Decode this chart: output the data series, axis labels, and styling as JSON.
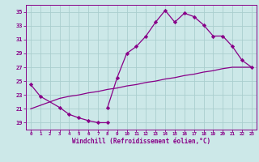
{
  "xlabel": "Windchill (Refroidissement éolien,°C)",
  "bg_color": "#cce8e8",
  "grid_color": "#aacece",
  "line_color": "#880088",
  "ylim": [
    18.0,
    36.0
  ],
  "yticks": [
    19,
    21,
    23,
    25,
    27,
    29,
    31,
    33,
    35
  ],
  "xlim": [
    -0.5,
    23.5
  ],
  "xticks": [
    0,
    1,
    2,
    3,
    4,
    5,
    6,
    7,
    8,
    9,
    10,
    11,
    12,
    13,
    14,
    15,
    16,
    17,
    18,
    19,
    20,
    21,
    22,
    23
  ],
  "series1_y": [
    24.5,
    22.8,
    null,
    21.2,
    20.2,
    19.7,
    19.3,
    19.0,
    19.0,
    null,
    null,
    null,
    null,
    null,
    null,
    null,
    null,
    null,
    null,
    null,
    null,
    null,
    null,
    null
  ],
  "series2_y": [
    null,
    null,
    null,
    null,
    null,
    null,
    null,
    null,
    21.2,
    25.5,
    29.0,
    30.0,
    31.5,
    33.5,
    35.2,
    33.5,
    34.8,
    34.3,
    33.1,
    31.5,
    31.5,
    30.0,
    28.0,
    27.0
  ],
  "series3_y": [
    21.0,
    21.5,
    22.0,
    22.5,
    22.8,
    23.0,
    23.3,
    23.5,
    23.8,
    24.0,
    24.3,
    24.5,
    24.8,
    25.0,
    25.3,
    25.5,
    25.8,
    26.0,
    26.3,
    26.5,
    26.8,
    27.0,
    27.0,
    27.0
  ]
}
